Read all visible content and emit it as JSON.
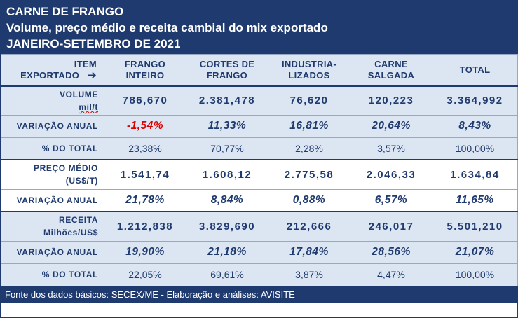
{
  "title": {
    "line1": "CARNE DE FRANGO",
    "line2": "Volume, preço médio e receita cambial do mix exportado",
    "line3": "JANEIRO-SETEMBRO DE 2021"
  },
  "header": {
    "item_label_1": "ITEM",
    "item_label_2": "EXPORTADO",
    "arrow_icon": "arrow-right-icon",
    "columns": [
      "FRANGO INTEIRO",
      "CORTES DE FRANGO",
      "INDUSTRIA-LIZADOS",
      "CARNE SALGADA",
      "TOTAL"
    ]
  },
  "rows": {
    "volume": {
      "label_1": "VOLUME",
      "label_2": "mil/t",
      "values": [
        "786,670",
        "2.381,478",
        "76,620",
        "120,223",
        "3.364,992"
      ]
    },
    "volume_var": {
      "label": "VARIAÇÃO ANUAL",
      "values": [
        "-1,54%",
        "11,33%",
        "16,81%",
        "20,64%",
        "8,43%"
      ]
    },
    "volume_share": {
      "label": "% DO TOTAL",
      "values": [
        "23,38%",
        "70,77%",
        "2,28%",
        "3,57%",
        "100,00%"
      ]
    },
    "price": {
      "label_1": "PREÇO MÉDIO",
      "label_2": "(US$/T)",
      "values": [
        "1.541,74",
        "1.608,12",
        "2.775,58",
        "2.046,33",
        "1.634,84"
      ]
    },
    "price_var": {
      "label": "VARIAÇÃO ANUAL",
      "values": [
        "21,78%",
        "8,84%",
        "0,88%",
        "6,57%",
        "11,65%"
      ]
    },
    "revenue": {
      "label_1": "RECEITA",
      "label_2": "Milhões/US$",
      "values": [
        "1.212,838",
        "3.829,690",
        "212,666",
        "246,017",
        "5.501,210"
      ]
    },
    "revenue_var": {
      "label": "VARIAÇÃO ANUAL",
      "values": [
        "19,90%",
        "21,18%",
        "17,84%",
        "28,56%",
        "21,07%"
      ]
    },
    "revenue_share": {
      "label": "% DO TOTAL",
      "values": [
        "22,05%",
        "69,61%",
        "3,87%",
        "4,47%",
        "100,00%"
      ]
    }
  },
  "footer": "Fonte dos dados básicos: SECEX/ME - Elaboração e análises: AVISITE",
  "colors": {
    "navy": "#1f3a6e",
    "shade": "#dce6f2",
    "negative": "#e00000"
  }
}
